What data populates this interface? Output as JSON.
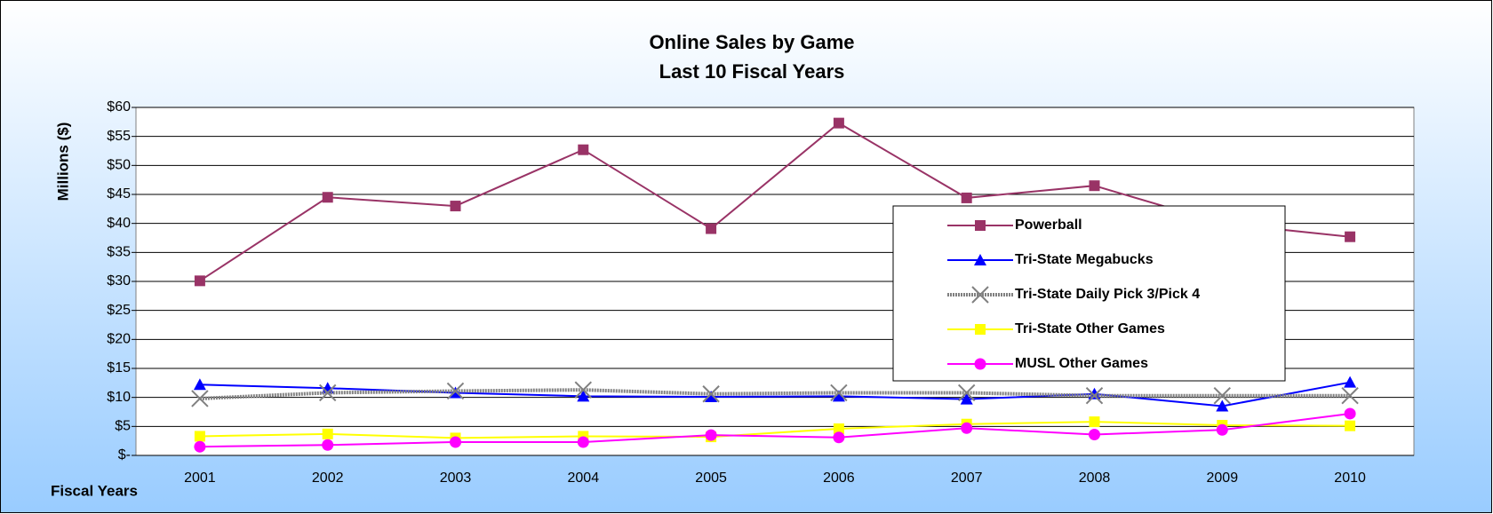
{
  "chart_data": {
    "type": "line",
    "title": "Online Sales by Game",
    "subtitle": "Last 10 Fiscal Years",
    "y_label": "Millions ($)",
    "x_label": "Fiscal Years",
    "categories": [
      "2001",
      "2002",
      "2003",
      "2004",
      "2005",
      "2006",
      "2007",
      "2008",
      "2009",
      "2010"
    ],
    "series": [
      {
        "name": "Powerball",
        "color": "#993366",
        "marker": "square",
        "values": [
          30.1,
          44.5,
          43.0,
          52.7,
          39.1,
          57.3,
          44.4,
          46.5,
          40.0,
          37.7
        ]
      },
      {
        "name": "Tri-State Megabucks",
        "color": "#0000ff",
        "marker": "triangle",
        "values": [
          12.2,
          11.6,
          10.8,
          10.2,
          10.1,
          10.2,
          9.7,
          10.6,
          8.5,
          12.6
        ]
      },
      {
        "name": "Tri-State Daily Pick 3/Pick 4",
        "color": "#808080",
        "marker": "x",
        "values": [
          9.8,
          10.8,
          11.1,
          11.3,
          10.6,
          10.8,
          10.8,
          10.3,
          10.3,
          10.3
        ]
      },
      {
        "name": "Tri-State Other Games",
        "color": "#ffff00",
        "marker": "square",
        "values": [
          3.3,
          3.7,
          3.0,
          3.3,
          3.2,
          4.6,
          5.4,
          5.8,
          5.2,
          5.1
        ]
      },
      {
        "name": "MUSL Other Games",
        "color": "#ff00ff",
        "marker": "circle",
        "values": [
          1.5,
          1.8,
          2.3,
          2.3,
          3.5,
          3.1,
          4.7,
          3.6,
          4.4,
          7.2
        ]
      }
    ],
    "ylim": [
      0,
      60
    ],
    "yticks": [
      {
        "value": 0,
        "label": "$-"
      },
      {
        "value": 5,
        "label": "$5"
      },
      {
        "value": 10,
        "label": "$10"
      },
      {
        "value": 15,
        "label": "$15"
      },
      {
        "value": 20,
        "label": "$20"
      },
      {
        "value": 25,
        "label": "$25"
      },
      {
        "value": 30,
        "label": "$30"
      },
      {
        "value": 35,
        "label": "$35"
      },
      {
        "value": 40,
        "label": "$40"
      },
      {
        "value": 45,
        "label": "$45"
      },
      {
        "value": 50,
        "label": "$50"
      },
      {
        "value": 55,
        "label": "$55"
      },
      {
        "value": 60,
        "label": "$60"
      }
    ],
    "grid": true
  }
}
